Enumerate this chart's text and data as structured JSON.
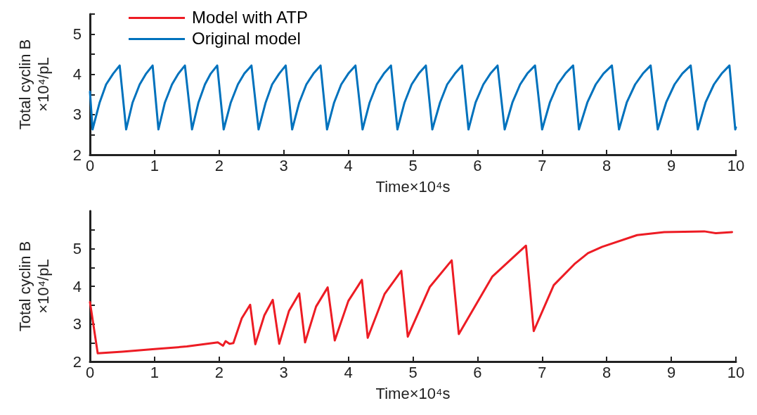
{
  "chart_data": [
    {
      "type": "line",
      "xlabel": "Time×10⁴s",
      "ylabel": "Total cyclin B\n×10⁴/pL",
      "xlim": [
        0,
        10
      ],
      "xticks": [
        0,
        1,
        2,
        3,
        4,
        5,
        6,
        7,
        8,
        9,
        10
      ],
      "ylim": [
        2,
        5.5
      ],
      "yticks": [
        2,
        {
          "value": 2.5,
          "label": null
        },
        3,
        {
          "value": 3.5,
          "label": null
        },
        4,
        {
          "value": 4.5,
          "label": null
        },
        5,
        {
          "value": 5.5,
          "label": null
        }
      ],
      "legend": "top left",
      "grid": false,
      "marker": "none",
      "line_style": "solid",
      "x": [
        0,
        0.04,
        0.15,
        0.25,
        0.36,
        0.46,
        0.56,
        0.66,
        0.77,
        0.87,
        0.97,
        1.06,
        1.16,
        1.27,
        1.37,
        1.47,
        1.58,
        1.68,
        1.78,
        1.87,
        1.97,
        2.07,
        2.18,
        2.29,
        2.39,
        2.5,
        2.61,
        2.72,
        2.82,
        2.93,
        3.03,
        3.13,
        3.24,
        3.35,
        3.46,
        3.57,
        3.67,
        3.78,
        3.89,
        4,
        4.11,
        4.22,
        4.33,
        4.44,
        4.55,
        4.66,
        4.76,
        4.87,
        4.98,
        5.09,
        5.2,
        5.3,
        5.42,
        5.53,
        5.65,
        5.76,
        5.86,
        5.97,
        6.09,
        6.2,
        6.31,
        6.42,
        6.54,
        6.66,
        6.77,
        6.89,
        7,
        7.12,
        7.24,
        7.36,
        7.48,
        7.57,
        7.7,
        7.83,
        7.95,
        8.08,
        8.19,
        8.31,
        8.44,
        8.56,
        8.68,
        8.79,
        8.92,
        9.05,
        9.17,
        9.3,
        9.41,
        9.53,
        9.66,
        9.78,
        9.9,
        9.99,
        10
      ],
      "series": [
        {
          "name": "Original model",
          "color": "#0072bd",
          "values": [
            3.57,
            2.63,
            3.3,
            3.75,
            4.02,
            4.22,
            2.63,
            3.3,
            3.75,
            4.02,
            4.22,
            2.63,
            3.3,
            3.75,
            4.02,
            4.22,
            2.63,
            3.3,
            3.75,
            4.02,
            4.22,
            2.63,
            3.3,
            3.75,
            4.02,
            4.22,
            2.63,
            3.3,
            3.75,
            4.02,
            4.22,
            2.63,
            3.3,
            3.75,
            4.02,
            4.22,
            2.63,
            3.3,
            3.75,
            4.02,
            4.22,
            2.63,
            3.3,
            3.75,
            4.02,
            4.22,
            2.63,
            3.3,
            3.75,
            4.02,
            4.22,
            2.63,
            3.3,
            3.75,
            4.02,
            4.22,
            2.63,
            3.3,
            3.75,
            4.02,
            4.22,
            2.63,
            3.3,
            3.75,
            4.02,
            4.22,
            2.63,
            3.3,
            3.75,
            4.02,
            4.22,
            2.63,
            3.3,
            3.75,
            4.02,
            4.22,
            2.63,
            3.3,
            3.75,
            4.02,
            4.22,
            2.63,
            3.3,
            3.75,
            4.02,
            4.22,
            2.63,
            3.3,
            3.75,
            4.02,
            4.22,
            2.63,
            2.68
          ]
        }
      ]
    },
    {
      "type": "line",
      "xlabel": "Time×10⁴s",
      "ylabel": "Total cyclin B\n×10⁴/pL",
      "xlim": [
        0,
        10
      ],
      "xticks": [
        0,
        1,
        2,
        3,
        4,
        5,
        6,
        7,
        8,
        9,
        10
      ],
      "ylim": [
        2,
        6
      ],
      "yticks": [
        2,
        {
          "value": 2.5,
          "label": null
        },
        3,
        {
          "value": 3.5,
          "label": null
        },
        4,
        {
          "value": 4.5,
          "label": null
        },
        5,
        {
          "value": 5.5,
          "label": null
        }
      ],
      "grid": false,
      "marker": "none",
      "line_style": "solid",
      "x": [
        0,
        0.12,
        0.5,
        1,
        1.5,
        1.98,
        2.06,
        2.1,
        2.16,
        2.22,
        2.35,
        2.48,
        2.56,
        2.7,
        2.83,
        2.93,
        3.08,
        3.24,
        3.33,
        3.5,
        3.68,
        3.79,
        4,
        4.21,
        4.3,
        4.56,
        4.82,
        4.92,
        5.26,
        5.6,
        5.71,
        6.23,
        6.75,
        6.87,
        7.18,
        7.5,
        7.71,
        7.93,
        8.47,
        8.89,
        9.51,
        9.69,
        9.94
      ],
      "series": [
        {
          "name": "Model with ATP",
          "color": "#ed1c24",
          "values": [
            3.58,
            2.22,
            2.26,
            2.33,
            2.4,
            2.51,
            2.42,
            2.54,
            2.47,
            2.49,
            3.15,
            3.51,
            2.46,
            3.23,
            3.64,
            2.47,
            3.34,
            3.81,
            2.51,
            3.46,
            3.97,
            2.56,
            3.61,
            4.17,
            2.63,
            3.79,
            4.41,
            2.66,
            3.98,
            4.69,
            2.73,
            4.26,
            5.08,
            2.81,
            4.03,
            4.59,
            4.88,
            5.05,
            5.36,
            5.44,
            5.46,
            5.41,
            5.44
          ]
        }
      ]
    }
  ]
}
